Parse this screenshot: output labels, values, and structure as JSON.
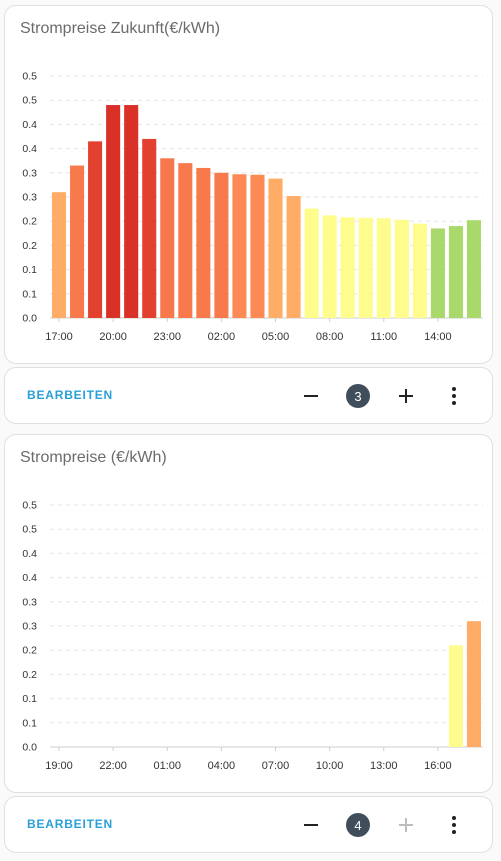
{
  "cards": [
    {
      "title": "Strompreise Zukunft(€/kWh)",
      "chart_data": {
        "type": "bar",
        "title": "Strompreise Zukunft(€/kWh)",
        "xlabel": "",
        "ylabel": "",
        "ylim": [
          0,
          0.5
        ],
        "y_ticks": [
          "0.0",
          "0.1",
          "0.1",
          "0.2",
          "0.2",
          "0.3",
          "0.3",
          "0.4",
          "0.4",
          "0.5",
          "0.5"
        ],
        "x_ticks": [
          "17:00",
          "20:00",
          "23:00",
          "02:00",
          "05:00",
          "08:00",
          "11:00",
          "14:00"
        ],
        "x_tick_every": 3,
        "values": [
          0.26,
          0.315,
          0.365,
          0.44,
          0.44,
          0.37,
          0.33,
          0.32,
          0.31,
          0.3,
          0.297,
          0.296,
          0.288,
          0.252,
          0.226,
          0.212,
          0.208,
          0.207,
          0.206,
          0.203,
          0.195,
          0.185,
          0.19,
          0.202
        ],
        "colors": [
          "#ffad66",
          "#f87a4c",
          "#e3412f",
          "#d93028",
          "#d93028",
          "#e3412f",
          "#f7784c",
          "#f87a4c",
          "#f87a4c",
          "#f87a4c",
          "#fd8a55",
          "#fd8a55",
          "#ffad66",
          "#ffad66",
          "#fdfc8c",
          "#fdfc8c",
          "#fdfc8c",
          "#fdfc8c",
          "#fdfc8c",
          "#fdfc8c",
          "#fdfc8c",
          "#a9d96a",
          "#a9d96a",
          "#a9d96a"
        ]
      },
      "edit_label": "BEARBEITEN",
      "count": "3",
      "plus_disabled": false
    },
    {
      "title": "Strompreise (€/kWh)",
      "chart_data": {
        "type": "bar",
        "title": "Strompreise (€/kWh)",
        "xlabel": "",
        "ylabel": "",
        "ylim": [
          0,
          0.5
        ],
        "y_ticks": [
          "0.0",
          "0.1",
          "0.1",
          "0.2",
          "0.2",
          "0.3",
          "0.3",
          "0.4",
          "0.4",
          "0.5",
          "0.5"
        ],
        "x_ticks": [
          "19:00",
          "22:00",
          "01:00",
          "04:00",
          "07:00",
          "10:00",
          "13:00",
          "16:00"
        ],
        "x_tick_every": 3,
        "values": [
          null,
          null,
          null,
          null,
          null,
          null,
          null,
          null,
          null,
          null,
          null,
          null,
          null,
          null,
          null,
          null,
          null,
          null,
          null,
          null,
          null,
          null,
          0.21,
          0.26
        ],
        "colors": [
          "#fdfc8c",
          "#fdfc8c",
          "#fdfc8c",
          "#fdfc8c",
          "#fdfc8c",
          "#fdfc8c",
          "#fdfc8c",
          "#fdfc8c",
          "#fdfc8c",
          "#fdfc8c",
          "#fdfc8c",
          "#fdfc8c",
          "#fdfc8c",
          "#fdfc8c",
          "#fdfc8c",
          "#fdfc8c",
          "#fdfc8c",
          "#fdfc8c",
          "#fdfc8c",
          "#fdfc8c",
          "#fdfc8c",
          "#fdfc8c",
          "#fdfc8c",
          "#ffad66"
        ]
      },
      "edit_label": "BEARBEITEN",
      "count": "4",
      "plus_disabled": true
    }
  ]
}
